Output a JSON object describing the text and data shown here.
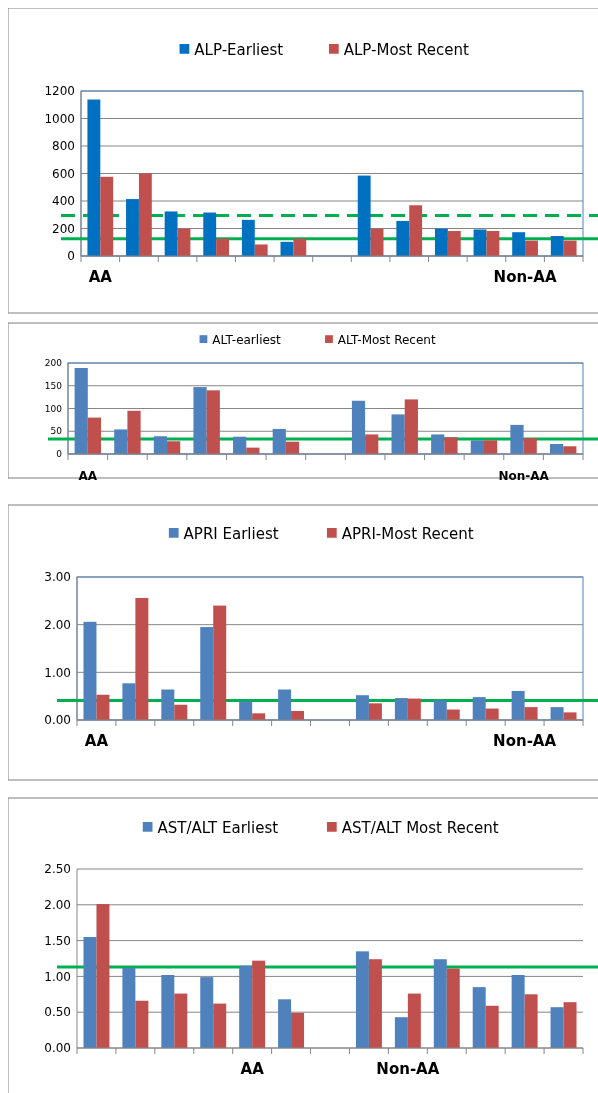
{
  "chart_data": [
    {
      "type": "bar",
      "categories": [
        "AA",
        null,
        null,
        null,
        null,
        null,
        null,
        null,
        null,
        null,
        null,
        "Non-AA",
        null
      ],
      "ylim": [
        0,
        1200
      ],
      "yticks": [
        0,
        200,
        400,
        600,
        800,
        1000,
        1200
      ],
      "grid": "y",
      "legend": "top",
      "series": [
        {
          "name": "ALP-Earliest",
          "color": "#0070c0",
          "values": [
            1138,
            414,
            324,
            316,
            263,
            103,
            null,
            585,
            255,
            199,
            193,
            173,
            145
          ]
        },
        {
          "name": "ALP-Most Recent",
          "color": "#c0504d",
          "values": [
            576,
            601,
            199,
            126,
            84,
            126,
            null,
            199,
            369,
            182,
            182,
            112,
            112
          ]
        }
      ],
      "ref_lines": [
        {
          "axis": "y",
          "value": 295,
          "color": "#00b050",
          "line_style": "dashed"
        },
        {
          "axis": "y",
          "value": 125,
          "color": "#00b050",
          "line_style": "solid"
        }
      ]
    },
    {
      "type": "bar",
      "categories": [
        "AA",
        null,
        null,
        null,
        null,
        null,
        null,
        null,
        null,
        null,
        null,
        "Non-AA",
        null
      ],
      "ylim": [
        0,
        200
      ],
      "yticks": [
        0,
        50,
        100,
        150,
        200
      ],
      "grid": "y",
      "legend": "top",
      "series": [
        {
          "name": "ALT-earliest",
          "color": "#4f81bd",
          "values": [
            189,
            54,
            39,
            147,
            38,
            55,
            null,
            117,
            87,
            43,
            30,
            64,
            22
          ]
        },
        {
          "name": "ALT-Most Recent",
          "color": "#c0504d",
          "values": [
            80,
            95,
            28,
            140,
            14,
            27,
            null,
            43,
            120,
            37,
            30,
            35,
            17
          ]
        }
      ],
      "ref_lines": [
        {
          "axis": "y",
          "value": 33,
          "color": "#00b050",
          "line_style": "solid"
        }
      ]
    },
    {
      "type": "bar",
      "categories": [
        "AA",
        null,
        null,
        null,
        null,
        null,
        null,
        null,
        null,
        null,
        null,
        "Non-AA",
        null
      ],
      "ylim": [
        0,
        3
      ],
      "yticks": [
        {
          "value": 0,
          "label": "0.00"
        },
        {
          "value": 1,
          "label": "1.00"
        },
        {
          "value": 2,
          "label": "2.00"
        },
        {
          "value": 3,
          "label": "3.00"
        }
      ],
      "grid": "y",
      "legend": "top",
      "series": [
        {
          "name": "APRI Earliest",
          "color": "#4f81bd",
          "values": [
            2.06,
            0.77,
            0.64,
            1.95,
            0.39,
            0.64,
            null,
            0.52,
            0.46,
            0.41,
            0.48,
            0.61,
            0.27
          ]
        },
        {
          "name": "APRI-Most Recent",
          "color": "#c0504d",
          "values": [
            0.53,
            2.56,
            0.32,
            2.4,
            0.14,
            0.19,
            null,
            0.35,
            0.45,
            0.22,
            0.24,
            0.27,
            0.16
          ]
        }
      ],
      "ref_lines": [
        {
          "axis": "y",
          "value": 0.41,
          "color": "#00b050",
          "line_style": "solid"
        }
      ]
    },
    {
      "type": "bar",
      "categories": [
        null,
        null,
        null,
        null,
        "AA",
        null,
        null,
        null,
        "Non-AA",
        null,
        null,
        null,
        null
      ],
      "ylim": [
        0,
        2.5
      ],
      "yticks": [
        {
          "value": 0,
          "label": "0.00"
        },
        {
          "value": 0.5,
          "label": "0.50"
        },
        {
          "value": 1,
          "label": "1.00"
        },
        {
          "value": 1.5,
          "label": "1.50"
        },
        {
          "value": 2,
          "label": "2.00"
        },
        {
          "value": 2.5,
          "label": "2.50"
        }
      ],
      "grid": "y",
      "legend": "top",
      "series": [
        {
          "name": "AST/ALT Earliest",
          "color": "#4f81bd",
          "values": [
            1.55,
            1.12,
            1.02,
            0.99,
            1.15,
            0.68,
            null,
            1.35,
            0.43,
            1.24,
            0.85,
            1.02,
            0.57
          ]
        },
        {
          "name": "AST/ALT Most Recent",
          "color": "#c0504d",
          "values": [
            2.01,
            0.66,
            0.76,
            0.62,
            1.22,
            0.49,
            null,
            1.24,
            0.76,
            1.11,
            0.59,
            0.75,
            0.64
          ]
        }
      ],
      "ref_lines": [
        {
          "axis": "y",
          "value": 1.13,
          "color": "#00b050",
          "line_style": "solid"
        }
      ]
    }
  ]
}
